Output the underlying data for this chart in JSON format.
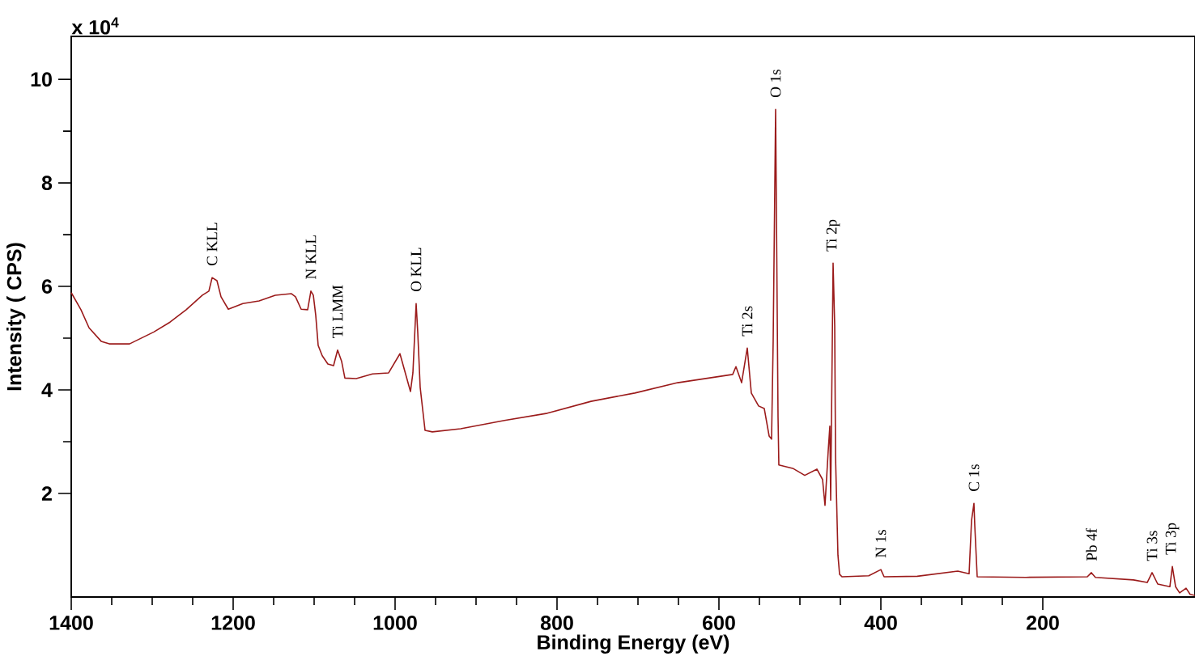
{
  "chart_data": {
    "type": "line",
    "xlabel": "Binding Energy (eV)",
    "ylabel": "Intensity ( CPS)",
    "xlim": [
      1400,
      12
    ],
    "ylim": [
      0,
      10.83
    ],
    "xticks": [
      1400,
      1200,
      1000,
      800,
      600,
      400,
      200
    ],
    "yticks": [
      2,
      4,
      6,
      8,
      10
    ],
    "x": [
      1400,
      1388,
      1378,
      1363,
      1353,
      1328,
      1298,
      1278,
      1258,
      1238,
      1230,
      1226,
      1220,
      1215,
      1206,
      1188,
      1168,
      1148,
      1128,
      1123,
      1116,
      1108,
      1104,
      1101,
      1098,
      1095,
      1090,
      1083,
      1076,
      1071,
      1066,
      1062,
      1048,
      1028,
      1008,
      994,
      981,
      978,
      974,
      972,
      969,
      963,
      954,
      919,
      865,
      812,
      758,
      704,
      651,
      583,
      579,
      572,
      565,
      560,
      551,
      544,
      538,
      535,
      533,
      530,
      527,
      526,
      508,
      494,
      479,
      472,
      469,
      465,
      463,
      462,
      459,
      457,
      456,
      453,
      451,
      448,
      415,
      400,
      396,
      355,
      305,
      291,
      288,
      285,
      284,
      281,
      221,
      145,
      140,
      135,
      88,
      71,
      65,
      58,
      43,
      40,
      36,
      31,
      23,
      18,
      12
    ],
    "series": [
      {
        "color": "#9b1b1b",
        "values": [
          5.88,
          5.55,
          5.2,
          4.94,
          4.89,
          4.89,
          5.12,
          5.31,
          5.55,
          5.83,
          5.91,
          6.17,
          6.11,
          5.8,
          5.56,
          5.67,
          5.72,
          5.83,
          5.86,
          5.8,
          5.56,
          5.55,
          5.91,
          5.83,
          5.44,
          4.86,
          4.66,
          4.5,
          4.47,
          4.77,
          4.55,
          4.23,
          4.22,
          4.31,
          4.33,
          4.7,
          3.97,
          4.33,
          5.67,
          5.11,
          4.05,
          3.22,
          3.19,
          3.25,
          3.41,
          3.55,
          3.78,
          3.94,
          4.14,
          4.3,
          4.45,
          4.14,
          4.81,
          3.94,
          3.69,
          3.64,
          3.11,
          3.05,
          4.95,
          9.42,
          3.48,
          2.55,
          2.48,
          2.35,
          2.47,
          2.27,
          1.77,
          2.83,
          3.3,
          1.87,
          6.45,
          5.23,
          2.72,
          0.81,
          0.44,
          0.39,
          0.41,
          0.53,
          0.39,
          0.4,
          0.5,
          0.45,
          1.48,
          1.81,
          1.38,
          0.39,
          0.38,
          0.39,
          0.47,
          0.38,
          0.33,
          0.28,
          0.47,
          0.25,
          0.2,
          0.59,
          0.2,
          0.08,
          0.17,
          0.05,
          0.03
        ]
      }
    ],
    "annotations": [
      "x 10$^{4}$",
      {
        "text": "C KLL",
        "x": 1226,
        "y": 6.17
      },
      {
        "text": "N KLL",
        "x": 1104,
        "y": 5.91
      },
      {
        "text": "Ti LMM",
        "x": 1071,
        "y": 4.77
      },
      {
        "text": "O KLL",
        "x": 974,
        "y": 5.67
      },
      {
        "text": "Ti 2s",
        "x": 565,
        "y": 4.81
      },
      {
        "text": "O 1s",
        "x": 530,
        "y": 9.42
      },
      {
        "text": "Ti 2p",
        "x": 459,
        "y": 6.45
      },
      {
        "text": "N 1s",
        "x": 400,
        "y": 0.53
      },
      {
        "text": "C 1s",
        "x": 285,
        "y": 1.81
      },
      {
        "text": "Pb 4f",
        "x": 140,
        "y": 0.47
      },
      {
        "text": "Ti 3s",
        "x": 65,
        "y": 0.47
      },
      {
        "text": "Ti 3p",
        "x": 40,
        "y": 0.59
      }
    ]
  }
}
